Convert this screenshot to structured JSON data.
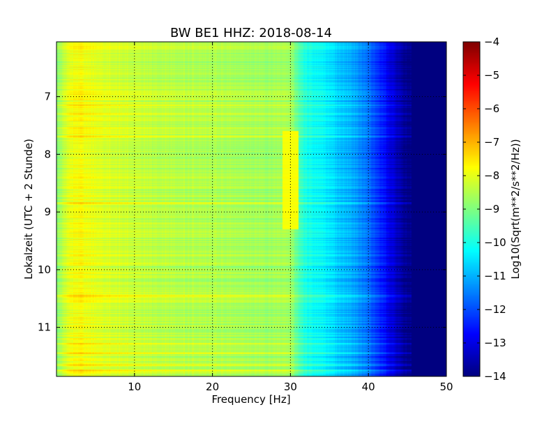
{
  "chart_data": {
    "type": "heatmap",
    "title": "BW BE1 HHZ: 2018-08-14",
    "xlabel": "Frequency [Hz]",
    "ylabel": "Lokalzeit (UTC + 2 Stunde)",
    "xlim": [
      0,
      50
    ],
    "ylim": [
      6.05,
      11.85
    ],
    "y_inverted": true,
    "x_ticks": [
      10,
      20,
      30,
      40,
      50
    ],
    "y_ticks": [
      7,
      8,
      9,
      10,
      11
    ],
    "grid": true,
    "colormap": "jet",
    "colorbar": {
      "label": "Log10(Sqrt(m**2/s**2/Hz))",
      "min": -14,
      "max": -4,
      "ticks": [
        -4,
        -5,
        -6,
        -7,
        -8,
        -9,
        -10,
        -11,
        -12,
        -13,
        -14
      ]
    },
    "spectral_profile": {
      "frequency_hz": [
        0,
        1,
        2,
        3,
        5,
        8,
        12,
        18,
        24,
        27,
        30,
        31,
        32,
        34,
        36,
        38,
        40,
        42,
        43,
        44,
        45,
        46,
        50
      ],
      "log10_amplitude": [
        -9.0,
        -8.3,
        -7.9,
        -7.8,
        -8.0,
        -8.2,
        -8.4,
        -8.5,
        -8.6,
        -8.7,
        -8.6,
        -9.5,
        -10.0,
        -10.3,
        -10.7,
        -11.1,
        -11.7,
        -12.6,
        -13.1,
        -13.6,
        -13.9,
        -14.0,
        -14.0
      ]
    },
    "enhanced_bands_hours": [
      6.95,
      7.15,
      7.3,
      7.4,
      7.55,
      7.7,
      8.85,
      9.2,
      9.75,
      10.45,
      11.28,
      11.45,
      11.65,
      11.75
    ],
    "resonance_band": {
      "frequency_hz": [
        29,
        31
      ],
      "hours": [
        7.6,
        9.3
      ],
      "log10_amplitude": -7.8
    }
  }
}
